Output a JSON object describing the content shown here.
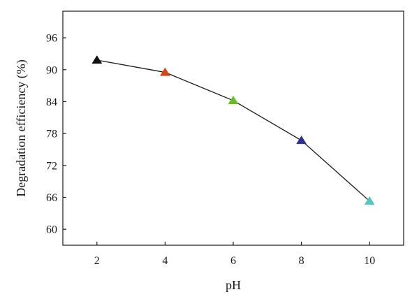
{
  "chart_data": {
    "type": "line",
    "title": "",
    "xlabel": "pH",
    "ylabel": "Degradation efficiency (%)",
    "xlim": [
      1,
      11
    ],
    "ylim": [
      57,
      101
    ],
    "x_ticks": [
      2,
      4,
      6,
      8,
      10
    ],
    "y_ticks": [
      60,
      66,
      72,
      78,
      84,
      90,
      96
    ],
    "grid": false,
    "legend": "none",
    "line_color": "#1a1a1a",
    "series": [
      {
        "x": [
          2,
          4,
          6,
          8,
          10
        ],
        "values": [
          91.8,
          89.5,
          84.2,
          76.7,
          65.3
        ],
        "marker": "triangle",
        "marker_colors": [
          "#111111",
          "#d2461e",
          "#6ab82e",
          "#2e2f8c",
          "#5fc1c0"
        ]
      }
    ]
  }
}
